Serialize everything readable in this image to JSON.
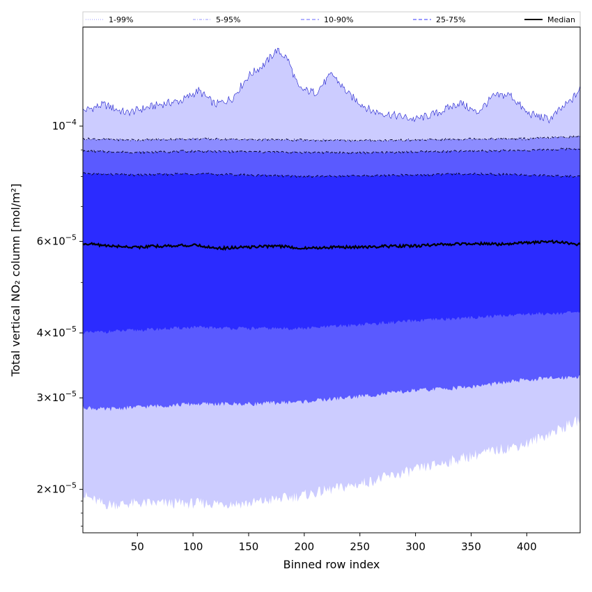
{
  "chart_data": {
    "type": "area",
    "xlabel": "Binned row index",
    "ylabel": "Total vertical NO₂ column [mol/m²]",
    "xlim": [
      1,
      448
    ],
    "ylim": [
      1.65e-05,
      0.000155
    ],
    "yscale": "log",
    "grid": false,
    "legend_position": "top",
    "x_ticks": [
      50,
      100,
      150,
      200,
      250,
      300,
      350,
      400
    ],
    "y_ticks": [
      {
        "value": 0.0001,
        "mantissa": "",
        "base": "10",
        "exp": "−4"
      },
      {
        "value": 6e-05,
        "mantissa": "6×",
        "base": "10",
        "exp": "−5"
      },
      {
        "value": 4e-05,
        "mantissa": "4×",
        "base": "10",
        "exp": "−5"
      },
      {
        "value": 3e-05,
        "mantissa": "3×",
        "base": "10",
        "exp": "−5"
      },
      {
        "value": 2e-05,
        "mantissa": "2×",
        "base": "10",
        "exp": "−5"
      }
    ],
    "bands": [
      {
        "name": "1-99%",
        "color": "#ccccff",
        "line_style": "dotted",
        "lower": {
          "x": [
            1,
            20,
            50,
            100,
            150,
            200,
            250,
            300,
            350,
            400,
            448
          ],
          "y": [
            1.95e-05,
            1.87e-05,
            1.88e-05,
            1.88e-05,
            1.88e-05,
            1.95e-05,
            2.05e-05,
            2.18e-05,
            2.32e-05,
            2.45e-05,
            2.72e-05
          ]
        },
        "upper": {
          "x": [
            1,
            20,
            40,
            55,
            70,
            90,
            105,
            120,
            135,
            150,
            165,
            175,
            185,
            195,
            210,
            225,
            240,
            260,
            280,
            300,
            320,
            340,
            355,
            370,
            385,
            400,
            420,
            440,
            448
          ],
          "y": [
            0.000107,
            0.00011,
            0.000106,
            0.000108,
            0.00011,
            0.000112,
            0.000117,
            0.00011,
            0.000113,
            0.000125,
            0.000132,
            0.00014,
            0.000135,
            0.000118,
            0.000116,
            0.000126,
            0.000115,
            0.000107,
            0.000105,
            0.000103,
            0.000106,
            0.000111,
            0.000106,
            0.000114,
            0.000115,
            0.000106,
            0.000103,
            0.000112,
            0.000118
          ]
        }
      },
      {
        "name": "5-95%",
        "color": "#8c8cff",
        "line_style": "dash-dot",
        "lower": {
          "x": [
            1,
            20,
            50,
            100,
            150,
            200,
            250,
            300,
            350,
            400,
            448
          ],
          "y": [
            3.22e-05,
            3.15e-05,
            3.2e-05,
            3.25e-05,
            3.28e-05,
            3.32e-05,
            3.38e-05,
            3.43e-05,
            3.47e-05,
            3.52e-05,
            3.57e-05
          ]
        },
        "upper": {
          "x": [
            1,
            50,
            100,
            150,
            200,
            250,
            300,
            350,
            400,
            448
          ],
          "y": [
            9.45e-05,
            9.4e-05,
            9.45e-05,
            9.42e-05,
            9.4e-05,
            9.38e-05,
            9.4e-05,
            9.45e-05,
            9.45e-05,
            9.55e-05
          ]
        }
      },
      {
        "name": "10-90%",
        "color": "#5a5aff",
        "line_style": "dashed",
        "lower": {
          "x": [
            1,
            20,
            50,
            100,
            150,
            200,
            250,
            300,
            350,
            400,
            448
          ],
          "y": [
            2.88e-05,
            2.85e-05,
            2.88e-05,
            2.92e-05,
            2.92e-05,
            2.95e-05,
            3.02e-05,
            3.1e-05,
            3.15e-05,
            3.25e-05,
            3.3e-05
          ]
        },
        "upper": {
          "x": [
            1,
            50,
            100,
            150,
            200,
            250,
            300,
            350,
            400,
            448
          ],
          "y": [
            8.95e-05,
            8.9e-05,
            8.95e-05,
            8.92e-05,
            8.9e-05,
            8.88e-05,
            8.92e-05,
            8.95e-05,
            8.98e-05,
            9.05e-05
          ]
        }
      },
      {
        "name": "25-75%",
        "color": "#2b2bff",
        "line_style": "dashed",
        "lower": {
          "x": [
            1,
            20,
            50,
            100,
            150,
            200,
            250,
            300,
            350,
            400,
            448
          ],
          "y": [
            4e-05,
            4.02e-05,
            4.05e-05,
            4.1e-05,
            4.08e-05,
            4.08e-05,
            4.15e-05,
            4.22e-05,
            4.28e-05,
            4.35e-05,
            4.38e-05
          ]
        },
        "upper": {
          "x": [
            1,
            50,
            100,
            150,
            200,
            250,
            300,
            350,
            400,
            448
          ],
          "y": [
            8.1e-05,
            8.05e-05,
            8.1e-05,
            8.05e-05,
            8e-05,
            8.02e-05,
            8.05e-05,
            8.1e-05,
            8.05e-05,
            8e-05
          ]
        }
      }
    ],
    "median": {
      "name": "Median",
      "color": "#000000",
      "x": [
        1,
        25,
        50,
        75,
        100,
        125,
        150,
        175,
        200,
        225,
        250,
        275,
        300,
        325,
        350,
        375,
        400,
        420,
        448
      ],
      "y": [
        5.95e-05,
        5.88e-05,
        5.85e-05,
        5.88e-05,
        5.9e-05,
        5.82e-05,
        5.85e-05,
        5.88e-05,
        5.82e-05,
        5.85e-05,
        5.85e-05,
        5.87e-05,
        5.88e-05,
        5.92e-05,
        5.95e-05,
        5.92e-05,
        5.96e-05,
        6e-05,
        5.92e-05
      ]
    },
    "legend": [
      {
        "label": "1-99%",
        "color": "#ccccff",
        "style": "dotted"
      },
      {
        "label": "5-95%",
        "color": "#8c8cff",
        "style": "dash-dot"
      },
      {
        "label": "10-90%",
        "color": "#5a5aff",
        "style": "dashed"
      },
      {
        "label": "25-75%",
        "color": "#2b2bff",
        "style": "dashed"
      },
      {
        "label": "Median",
        "color": "#000000",
        "style": "solid"
      }
    ]
  }
}
